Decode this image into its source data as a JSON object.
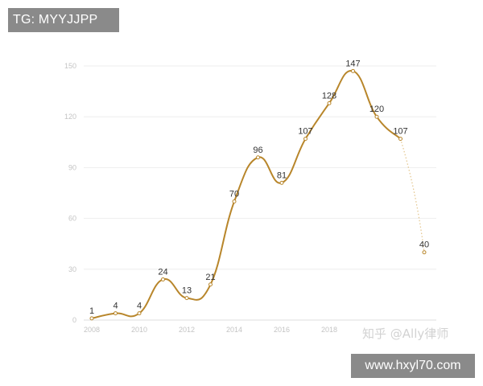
{
  "watermark_tg": "TG: MYYJJPP",
  "watermark_url": "www.hxyl70.com",
  "watermark_zhihu": "知乎 @Ally律师",
  "chart_data": {
    "type": "line",
    "title": "",
    "xlabel": "",
    "ylabel": "",
    "x": [
      2008,
      2009,
      2010,
      2011,
      2012,
      2013,
      2014,
      2015,
      2016,
      2017,
      2018,
      2019,
      2020,
      2021,
      2022
    ],
    "values": [
      1,
      4,
      4,
      24,
      13,
      21,
      70,
      96,
      81,
      107,
      128,
      147,
      120,
      107,
      40
    ],
    "data_labels": [
      "1",
      "4",
      "4",
      "24",
      "13",
      "21",
      "70",
      "96",
      "81",
      "107",
      "128",
      "147",
      "120",
      "107",
      "40"
    ],
    "dashed_last_segment": true,
    "xlim": [
      2008,
      2022
    ],
    "ylim": [
      0,
      150
    ],
    "xticks": [
      "2008",
      "2010",
      "2012",
      "2014",
      "2016",
      "2018"
    ],
    "yticks": [
      "0",
      "30",
      "60",
      "90",
      "120",
      "150"
    ],
    "grid": true,
    "line_color": "#b8862b"
  }
}
